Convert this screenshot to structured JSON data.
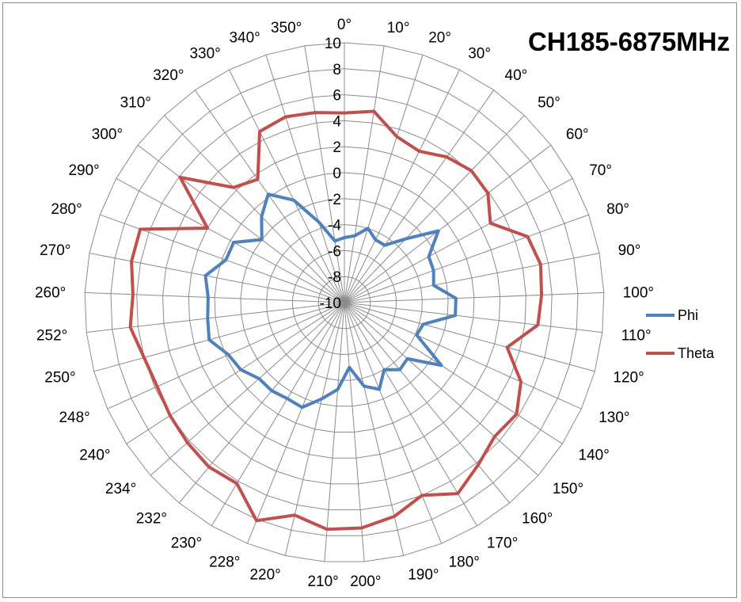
{
  "chart_data": {
    "type": "radar",
    "title": "CH185-6875MHz",
    "categories": [
      "0°",
      "10°",
      "20°",
      "30°",
      "40°",
      "50°",
      "60°",
      "70°",
      "80°",
      "90°",
      "100°",
      "110°",
      "120°",
      "130°",
      "140°",
      "150°",
      "160°",
      "170°",
      "180°",
      "190°",
      "200°",
      "210°",
      "220°",
      "228°",
      "230°",
      "232°",
      "234°",
      "240°",
      "248°",
      "250°",
      "252°",
      "260°",
      "270°",
      "280°",
      "290°",
      "300°",
      "310°",
      "320°",
      "330°",
      "340°",
      "350°"
    ],
    "r_ticks": [
      "10",
      "8",
      "6",
      "4",
      "2",
      "0",
      "-2",
      "-4",
      "-6",
      "-8",
      "-10"
    ],
    "rlim": [
      -10,
      10
    ],
    "grid": true,
    "legend_position": "right",
    "series": [
      {
        "name": "Phi",
        "color": "#4f81bd",
        "values": [
          -5.0,
          -4.8,
          -4.0,
          -4.6,
          -4.6,
          -3.2,
          -0.9,
          -2.6,
          -2.7,
          -3.0,
          -1.4,
          -1.4,
          -3.7,
          -3.9,
          -1.1,
          -3.5,
          -3.3,
          -4.0,
          -2.8,
          -3.4,
          -5.0,
          -3.3,
          -2.4,
          -1.3,
          -1.4,
          -1.2,
          -1.2,
          -0.5,
          -0.2,
          0.8,
          0.6,
          0.5,
          0.9,
          -0.3,
          -0.3,
          -2.0,
          -0.8,
          0.2,
          -1.2,
          -3.5,
          -5.2
        ]
      },
      {
        "name": "Theta",
        "color": "#c0504d",
        "values": [
          4.6,
          4.9,
          3.4,
          3.0,
          3.7,
          4.1,
          3.9,
          2.8,
          5.0,
          5.4,
          5.2,
          5.0,
          3.0,
          4.9,
          5.8,
          5.5,
          6.2,
          7.1,
          6.0,
          6.9,
          7.4,
          7.5,
          6.8,
          8.1,
          6.2,
          6.4,
          6.2,
          6.0,
          5.8,
          6.0,
          6.6,
          6.3,
          6.7,
          6.7,
          2.0,
          5.9,
          2.3,
          1.6,
          4.7,
          5.0,
          4.8
        ]
      }
    ]
  }
}
